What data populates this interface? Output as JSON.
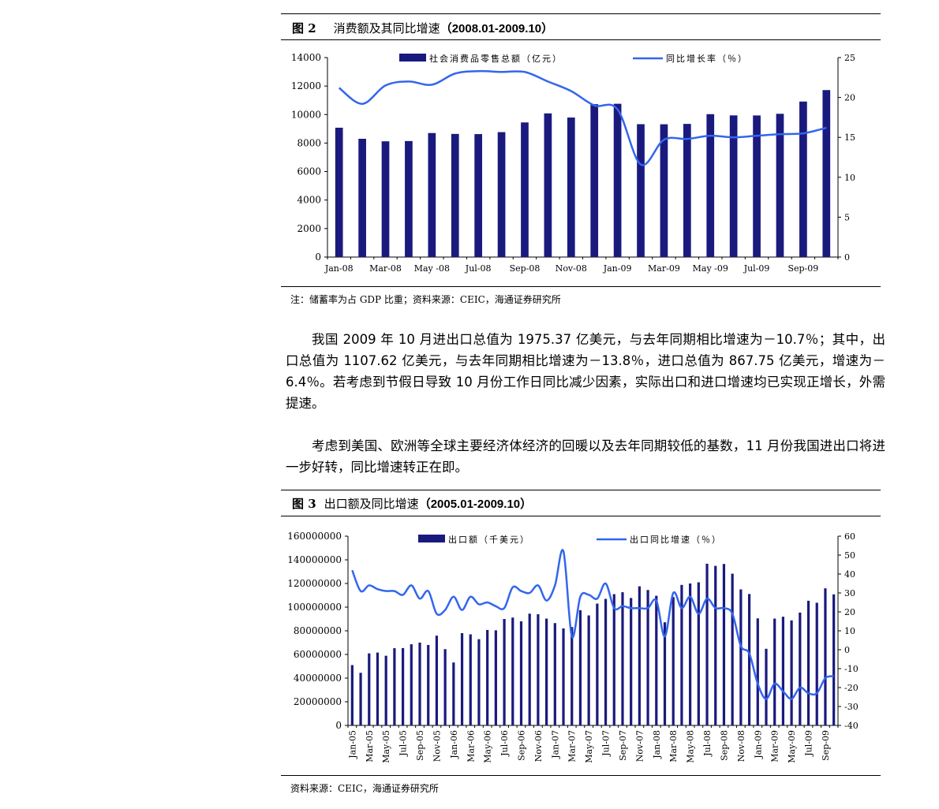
{
  "figure2": {
    "number": "图 2",
    "title": "消费额及其同比增速",
    "range": "（2008.01-2009.10）",
    "note": "注：储蓄率为占 GDP 比重；资料来源：CEIC，海通证券研究所"
  },
  "paragraphs": [
    "我国 2009 年 10 月进出口总值为 1975.37 亿美元，与去年同期相比增速为－10.7％；其中，出口总值为 1107.62 亿美元，与去年同期相比增速为－13.8％，进口总值为 867.75 亿美元，增速为－6.4％。若考虑到节假日导致 10 月份工作日同比减少因素，实际出口和进口增速均已实现正增长，外需提速。",
    "考虑到美国、欧洲等全球主要经济体经济的回暖以及去年同期较低的基数，11 月份我国进出口将进一步好转，同比增速转正在即。"
  ],
  "figure3": {
    "number": "图 3",
    "title": "出口额及同比增速",
    "range": "（2005.01-2009.10）",
    "note": "资料来源：CEIC，海通证券研究所"
  },
  "chart_data": [
    {
      "type": "bar",
      "bar_color": "#1a1a7e",
      "line_color": "#3366ee",
      "categories": [
        "Jan-08",
        "Feb-08",
        "Mar-08",
        "Apr-08",
        "May-08",
        "Jun-08",
        "Jul-08",
        "Aug-08",
        "Sep-08",
        "Oct-08",
        "Nov-08",
        "Dec-08",
        "Jan-09",
        "Feb-09",
        "Mar-09",
        "Apr-09",
        "May-09",
        "Jun-09",
        "Jul-09",
        "Aug-09",
        "Sep-09",
        "Oct-09"
      ],
      "x_tick_labels": [
        "Jan-08",
        "Mar-08",
        "May -08",
        "Jul-08",
        "Sep-08",
        "Nov-08",
        "Jan-09",
        "Mar-09",
        "May -09",
        "Jul-09",
        "Sep-09"
      ],
      "series": [
        {
          "name": "社会消费品零售总额（亿元）",
          "axis": "left",
          "values": [
            9077,
            8300,
            8123,
            8142,
            8703,
            8642,
            8629,
            8767,
            9447,
            10083,
            9791,
            10729,
            10757,
            9324,
            9318,
            9344,
            10028,
            9942,
            9937,
            10054,
            10913,
            11718
          ]
        },
        {
          "name": "同比增长率（％）",
          "axis": "right",
          "type": "line",
          "values": [
            21.2,
            19.2,
            21.5,
            22.0,
            21.6,
            23.0,
            23.3,
            23.2,
            23.2,
            22.0,
            20.8,
            19.0,
            18.5,
            11.6,
            14.7,
            14.8,
            15.2,
            15.0,
            15.2,
            15.4,
            15.5,
            16.2
          ]
        }
      ],
      "y_left": {
        "ticks": [
          0,
          2000,
          4000,
          6000,
          8000,
          10000,
          12000,
          14000
        ],
        "ylim": [
          0,
          14000
        ]
      },
      "y_right": {
        "ticks": [
          0,
          5,
          10,
          15,
          20,
          25
        ],
        "ylim": [
          0,
          25
        ]
      },
      "legend": "top"
    },
    {
      "type": "bar",
      "bar_color": "#1a1a7e",
      "line_color": "#3366ee",
      "categories": [
        "Jan-05",
        "Feb-05",
        "Mar-05",
        "Apr-05",
        "May-05",
        "Jun-05",
        "Jul-05",
        "Aug-05",
        "Sep-05",
        "Oct-05",
        "Nov-05",
        "Dec-05",
        "Jan-06",
        "Feb-06",
        "Mar-06",
        "Apr-06",
        "May-06",
        "Jun-06",
        "Jul-06",
        "Aug-06",
        "Sep-06",
        "Oct-06",
        "Nov-06",
        "Dec-06",
        "Jan-07",
        "Feb-07",
        "Mar-07",
        "Apr-07",
        "May-07",
        "Jun-07",
        "Jul-07",
        "Aug-07",
        "Sep-07",
        "Oct-07",
        "Nov-07",
        "Dec-07",
        "Jan-08",
        "Feb-08",
        "Mar-08",
        "Apr-08",
        "May-08",
        "Jun-08",
        "Jul-08",
        "Aug-08",
        "Sep-08",
        "Oct-08",
        "Nov-08",
        "Dec-08",
        "Jan-09",
        "Feb-09",
        "Mar-09",
        "Apr-09",
        "May-09",
        "Jun-09",
        "Jul-09",
        "Aug-09",
        "Sep-09",
        "Oct-09"
      ],
      "x_tick_labels": [
        "Jan-05",
        "Mar-05",
        "May-05",
        "Jul-05",
        "Sep-05",
        "Nov-05",
        "Jan-06",
        "Mar-06",
        "May-06",
        "Jul-06",
        "Sep-06",
        "Nov-06",
        "Jan-07",
        "Mar-07",
        "May-07",
        "Jul-07",
        "Sep-07",
        "Nov-07",
        "Jan-08",
        "Mar-08",
        "May-08",
        "Jul-08",
        "Sep-08",
        "Nov-08",
        "Jan-09",
        "Mar-09",
        "May-09",
        "Jul-09",
        "Sep-09"
      ],
      "series": [
        {
          "name": "出口额（千美元）",
          "axis": "left",
          "values": [
            51000000,
            44500000,
            60900000,
            61600000,
            58900000,
            65300000,
            65400000,
            68600000,
            70000000,
            68000000,
            75900000,
            64500000,
            53200000,
            78000000,
            77000000,
            72900000,
            80700000,
            80400000,
            90000000,
            91200000,
            88000000,
            94500000,
            94000000,
            90300000,
            86500000,
            82000000,
            83200000,
            97400000,
            93000000,
            103000000,
            107000000,
            111000000,
            112600000,
            107700000,
            117600000,
            114500000,
            109600000,
            87200000,
            108500000,
            118800000,
            120000000,
            121000000,
            136700000,
            134900000,
            136500000,
            128300000,
            115000000,
            111100000,
            90500000,
            64800000,
            90300000,
            91900000,
            88800000,
            95400000,
            105400000,
            103700000,
            115900000,
            110800000
          ]
        },
        {
          "name": "出口同比增速（％）",
          "axis": "right",
          "type": "line",
          "values": [
            42,
            31,
            34,
            32,
            31,
            31,
            29,
            34,
            27,
            31,
            19,
            21,
            28,
            21,
            28,
            24,
            25,
            23,
            22,
            33,
            31,
            30,
            34,
            26,
            34,
            52,
            7,
            28,
            29,
            27,
            35,
            22,
            23,
            22,
            22,
            22,
            26,
            7,
            30,
            22,
            28,
            19,
            27,
            22,
            22,
            19,
            2,
            -2,
            -18,
            -26,
            -18,
            -22,
            -26,
            -20,
            -23,
            -23,
            -15,
            -14
          ]
        }
      ],
      "y_left": {
        "ticks": [
          0,
          20000000,
          40000000,
          60000000,
          80000000,
          100000000,
          120000000,
          140000000,
          160000000
        ],
        "ylim": [
          0,
          160000000
        ]
      },
      "y_right": {
        "ticks": [
          -40,
          -30,
          -20,
          -10,
          0,
          10,
          20,
          30,
          40,
          50,
          60
        ],
        "ylim": [
          -40,
          60
        ]
      },
      "legend": "top"
    }
  ]
}
